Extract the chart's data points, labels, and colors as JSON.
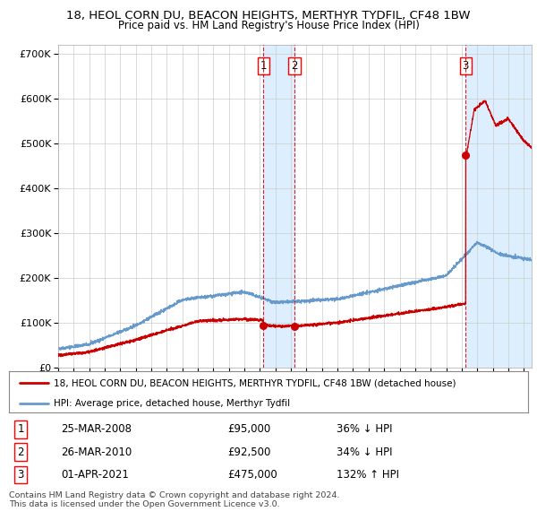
{
  "title1": "18, HEOL CORN DU, BEACON HEIGHTS, MERTHYR TYDFIL, CF48 1BW",
  "title2": "Price paid vs. HM Land Registry's House Price Index (HPI)",
  "xlim_start": 1995.0,
  "xlim_end": 2025.5,
  "ylim": [
    0,
    720000
  ],
  "yticks": [
    0,
    100000,
    200000,
    300000,
    400000,
    500000,
    600000,
    700000
  ],
  "ytick_labels": [
    "£0",
    "£100K",
    "£200K",
    "£300K",
    "£400K",
    "£500K",
    "£600K",
    "£700K"
  ],
  "hpi_color": "#6699cc",
  "price_color": "#cc0000",
  "legend_label_red": "18, HEOL CORN DU, BEACON HEIGHTS, MERTHYR TYDFIL, CF48 1BW (detached house)",
  "legend_label_blue": "HPI: Average price, detached house, Merthyr Tydfil",
  "sales": [
    {
      "num": 1,
      "date_x": 2008.23,
      "price": 95000,
      "label": "25-MAR-2008",
      "price_label": "£95,000",
      "pct": "36% ↓ HPI"
    },
    {
      "num": 2,
      "date_x": 2010.23,
      "price": 92500,
      "label": "26-MAR-2010",
      "price_label": "£92,500",
      "pct": "34% ↓ HPI"
    },
    {
      "num": 3,
      "date_x": 2021.25,
      "price": 475000,
      "label": "01-APR-2021",
      "price_label": "£475,000",
      "pct": "132% ↑ HPI"
    }
  ],
  "footer1": "Contains HM Land Registry data © Crown copyright and database right 2024.",
  "footer2": "This data is licensed under the Open Government Licence v3.0.",
  "bg_color": "#ffffff",
  "grid_color": "#cccccc",
  "shade_color": "#ddeeff"
}
